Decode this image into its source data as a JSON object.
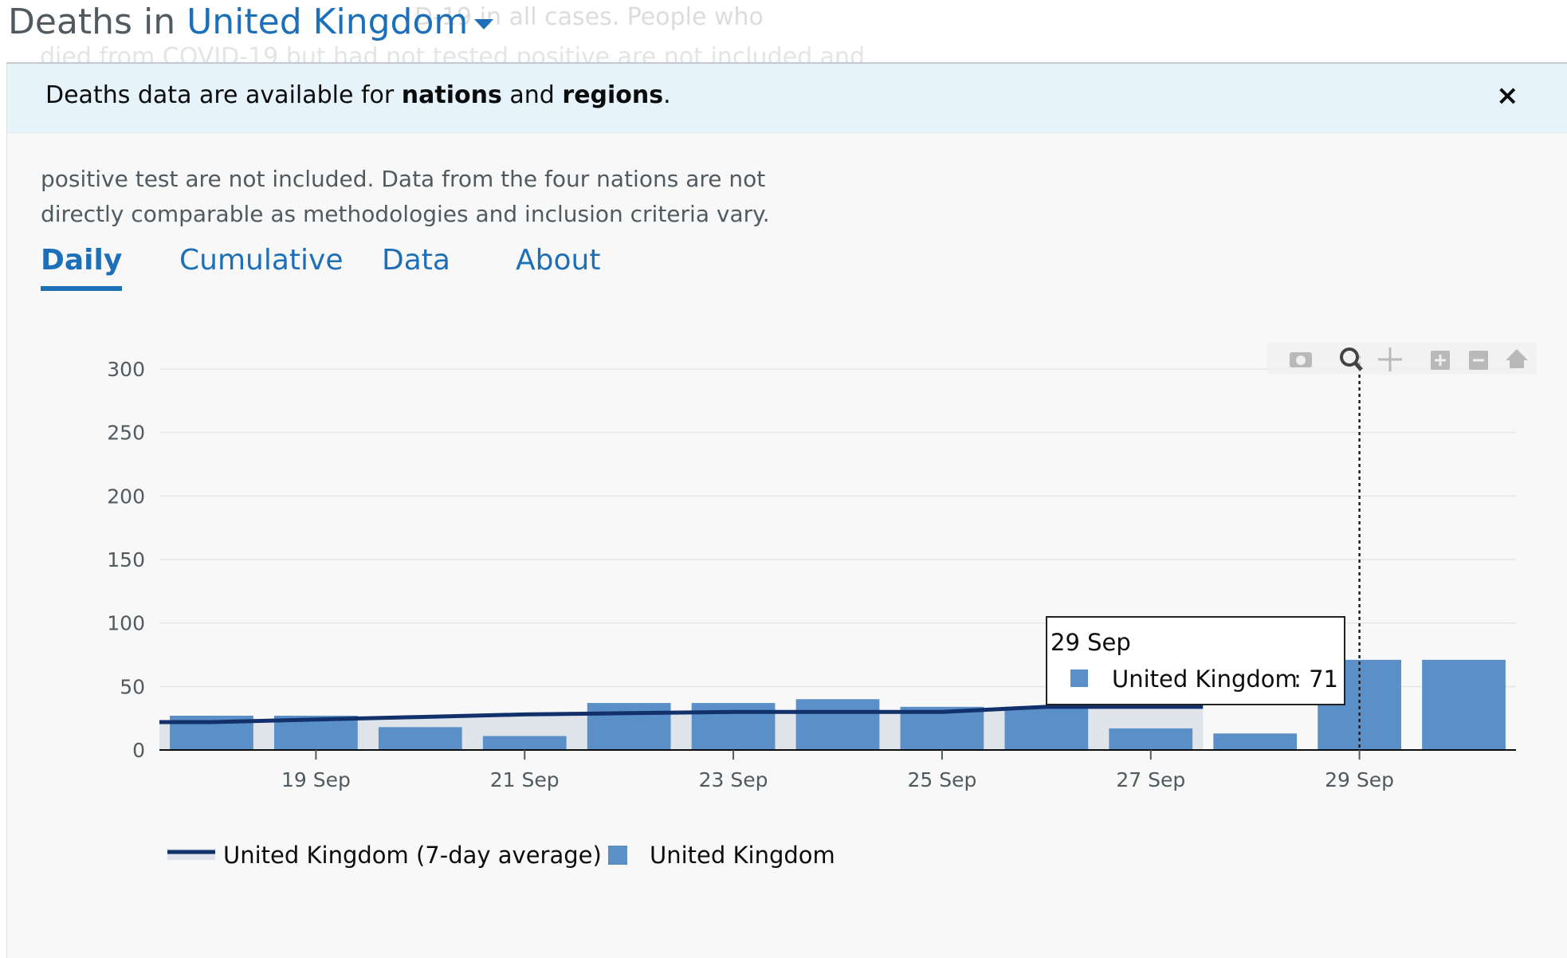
{
  "header": {
    "title_prefix": "Deaths in",
    "location": "United Kingdom",
    "background_snippet_1": "D-19 in all cases. People who",
    "background_snippet_2": "died from COVID-19 but had not tested positive are not included and"
  },
  "banner": {
    "text_start": "Deaths data are available for",
    "link_1": "nations",
    "text_mid": "and",
    "link_2": "regions",
    "text_end": ".",
    "close_label": "×"
  },
  "description": {
    "line1": "positive test are not included. Data from the four nations are not",
    "line2": "directly comparable as methodologies and inclusion criteria vary."
  },
  "tabs": [
    {
      "label": "Daily",
      "active": true
    },
    {
      "label": "Cumulative",
      "active": false
    },
    {
      "label": "Data",
      "active": false
    },
    {
      "label": "About",
      "active": false
    }
  ],
  "modebar": {
    "icons": [
      "camera-icon",
      "zoom-icon",
      "pan-icon",
      "zoom-in-icon",
      "zoom-out-icon",
      "home-icon"
    ]
  },
  "tooltip": {
    "date": "29 Sep",
    "series": "United Kingdom",
    "value_text": ": 71"
  },
  "colors": {
    "bar": "#5a8fc8",
    "line": "#12316b",
    "area": "#dfe4ea",
    "link": "#1d70b8"
  },
  "chart_data": {
    "type": "bar",
    "categories": [
      "18 Sep",
      "19 Sep",
      "20 Sep",
      "21 Sep",
      "22 Sep",
      "23 Sep",
      "24 Sep",
      "25 Sep",
      "26 Sep",
      "27 Sep",
      "28 Sep",
      "29 Sep",
      "30 Sep"
    ],
    "series": [
      {
        "name": "United Kingdom",
        "type": "bar",
        "values": [
          27,
          27,
          18,
          11,
          37,
          37,
          40,
          34,
          34,
          17,
          13,
          71,
          71
        ]
      },
      {
        "name": "United Kingdom (7-day average)",
        "type": "line",
        "values": [
          22,
          24,
          26,
          28,
          29,
          30,
          30,
          30,
          34,
          34,
          null,
          null,
          null
        ]
      }
    ],
    "xtick_labels": [
      "19 Sep",
      "21 Sep",
      "23 Sep",
      "25 Sep",
      "27 Sep",
      "29 Sep"
    ],
    "ylim": [
      0,
      300
    ],
    "yticks": [
      0,
      50,
      100,
      150,
      200,
      250,
      300
    ],
    "grid": true,
    "legend": "bottom-left"
  }
}
